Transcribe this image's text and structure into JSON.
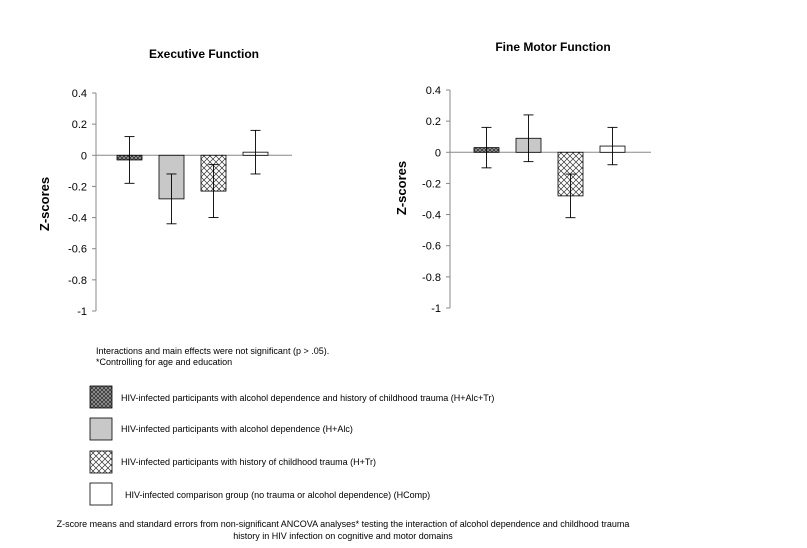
{
  "chart_data": [
    {
      "type": "bar",
      "title": "Executive Function",
      "xlabel": "",
      "ylabel": "Z-scores",
      "ylim": [
        -1,
        0.4
      ],
      "yticks": [
        "0.4",
        "0.2",
        "0",
        "-0.2",
        "-0.4",
        "-0.6",
        "-0.8",
        "-1"
      ],
      "categories": [
        "H+Alc+Tr",
        "H+Alc",
        "H+Tr",
        "HComp"
      ],
      "values": [
        -0.03,
        -0.28,
        -0.23,
        0.02
      ],
      "error": [
        0.15,
        0.16,
        0.17,
        0.14
      ]
    },
    {
      "type": "bar",
      "title": "Fine Motor Function",
      "xlabel": "",
      "ylabel": "Z-scores",
      "ylim": [
        -1,
        0.4
      ],
      "yticks": [
        "0.4",
        "0.2",
        "0",
        "-0.2",
        "-0.4",
        "-0.6",
        "-0.8",
        "-1"
      ],
      "categories": [
        "H+Alc+Tr",
        "H+Alc",
        "H+Tr",
        "HComp"
      ],
      "values": [
        0.03,
        0.09,
        -0.28,
        0.04
      ],
      "error": [
        0.13,
        0.15,
        0.14,
        0.12
      ]
    }
  ],
  "notes": {
    "line1": "Interactions and main effects were not significant (p > .05).",
    "line2": "*Controlling for age and education"
  },
  "legend": [
    {
      "label": "HIV-infected participants with alcohol dependence and history of childhood trauma (H+Alc+Tr)",
      "pattern": "dark-crosshatch"
    },
    {
      "label": "HIV-infected participants with alcohol dependence (H+Alc)",
      "pattern": "gray-solid"
    },
    {
      "label": "HIV-infected participants with history of childhood trauma (H+Tr)",
      "pattern": "light-crosshatch"
    },
    {
      "label": "HIV-infected comparison group (no trauma or alcohol dependence) (HComp)",
      "pattern": "white"
    }
  ],
  "caption": {
    "line1": "Z-score means and standard errors from non-significant ANCOVA analyses* testing the interaction of alcohol dependence and childhood trauma",
    "line2": "history in HIV infection on cognitive and motor domains"
  },
  "colors": {
    "gray_fill": "#c8c8c8",
    "dark_hatch_bg": "#9a9a9a",
    "hatch_line": "#333333",
    "axis": "#888888"
  }
}
